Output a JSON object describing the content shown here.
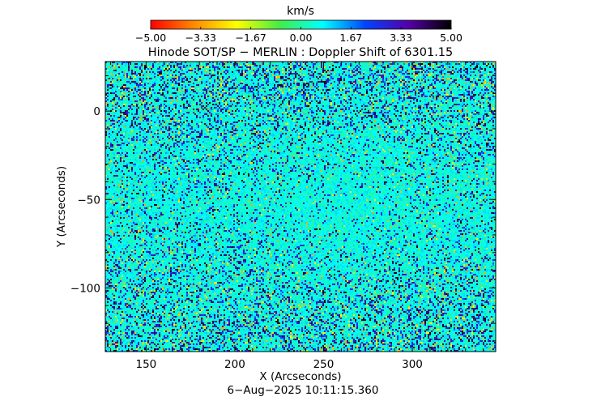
{
  "colorbar": {
    "unit_label": "km/s",
    "ticks": [
      "−5.00",
      "−3.33",
      "−1.67",
      "0.00",
      "1.67",
      "3.33",
      "5.00"
    ],
    "range": [
      -5.0,
      5.0
    ],
    "stops": [
      "#ff0000",
      "#ff8800",
      "#ffff00",
      "#44ee44",
      "#00ffff",
      "#0044ff",
      "#5500aa",
      "#000000"
    ]
  },
  "chart_data": {
    "type": "heatmap",
    "title": "Hinode SOT/SP − MERLIN : Doppler Shift of 6301.15",
    "xlabel": "X (Arcseconds)",
    "ylabel": "Y (Arcseconds)",
    "xlim": [
      127,
      347
    ],
    "ylim": [
      -136,
      28
    ],
    "xticks": [
      150,
      200,
      250,
      300
    ],
    "yticks": [
      0,
      -50,
      -100
    ],
    "xtick_labels": [
      "150",
      "200",
      "250",
      "300"
    ],
    "ytick_labels": [
      "0",
      "−50",
      "−100"
    ],
    "value_range_kms": [
      -5.0,
      5.0
    ],
    "dominant_value_kms": 0.5,
    "grid": false
  },
  "footer": {
    "timestamp": "6−Aug−2025 10:11:15.360"
  }
}
